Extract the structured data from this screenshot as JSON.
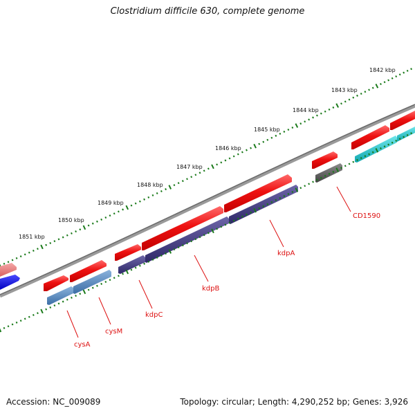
{
  "title": "Clostridium difficile 630, complete genome",
  "footer": {
    "accession": "Accession: NC_009089",
    "summary": "Topology: circular; Length: 4,290,252 bp; Genes: 3,926"
  },
  "scale_labels": [
    "1842 kbp",
    "1843 kbp",
    "1844 kbp",
    "1845 kbp",
    "1846 kbp",
    "1847 kbp",
    "1848 kbp",
    "1849 kbp",
    "1850 kbp",
    "1851 kbp"
  ],
  "gene_labels": [
    "CD1590",
    "kdpA",
    "kdpB",
    "kdpC",
    "cysM",
    "cysA"
  ],
  "colors": {
    "backbone": "#7a7a7a",
    "cds_strand": "#ee1111",
    "scale_ticks": "#1a7a1a",
    "label": "#dd1111",
    "cysA_feature": "#4a7fb5",
    "kdp_feature": "#3d357a",
    "cd1590_feature": "#555555",
    "right_feature": "#17bcc4",
    "left_feature_pink": "#e88080",
    "left_feature_blue": "#1010dd"
  }
}
